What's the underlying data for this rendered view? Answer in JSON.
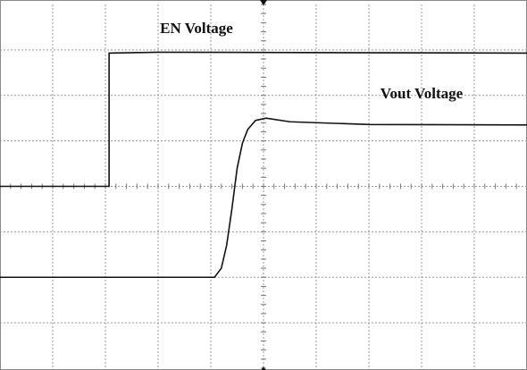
{
  "chart_data": {
    "type": "line",
    "annotations": [
      "EN Voltage",
      "Vout Voltage"
    ],
    "series": [
      {
        "name": "EN Voltage",
        "color": "#111111",
        "x": [
          0,
          2.07,
          2.07,
          3,
          10
        ],
        "values": [
          4,
          4,
          6.93,
          6.95,
          6.93
        ]
      },
      {
        "name": "Vout Voltage",
        "color": "#111111",
        "x": [
          0,
          4.07,
          4.2,
          4.3,
          4.4,
          4.5,
          4.6,
          4.7,
          4.85,
          5.05,
          5.5,
          7,
          10
        ],
        "values": [
          2,
          2,
          2.2,
          2.7,
          3.5,
          4.4,
          4.95,
          5.25,
          5.45,
          5.5,
          5.42,
          5.36,
          5.35
        ]
      }
    ],
    "xlim": [
      0,
      10
    ],
    "ylim": [
      0,
      8
    ],
    "xticks": [
      1,
      2,
      3,
      4,
      5,
      6,
      7,
      8,
      9
    ],
    "yticks": [
      1,
      2,
      3,
      4,
      5,
      6,
      7
    ],
    "grid": true
  }
}
